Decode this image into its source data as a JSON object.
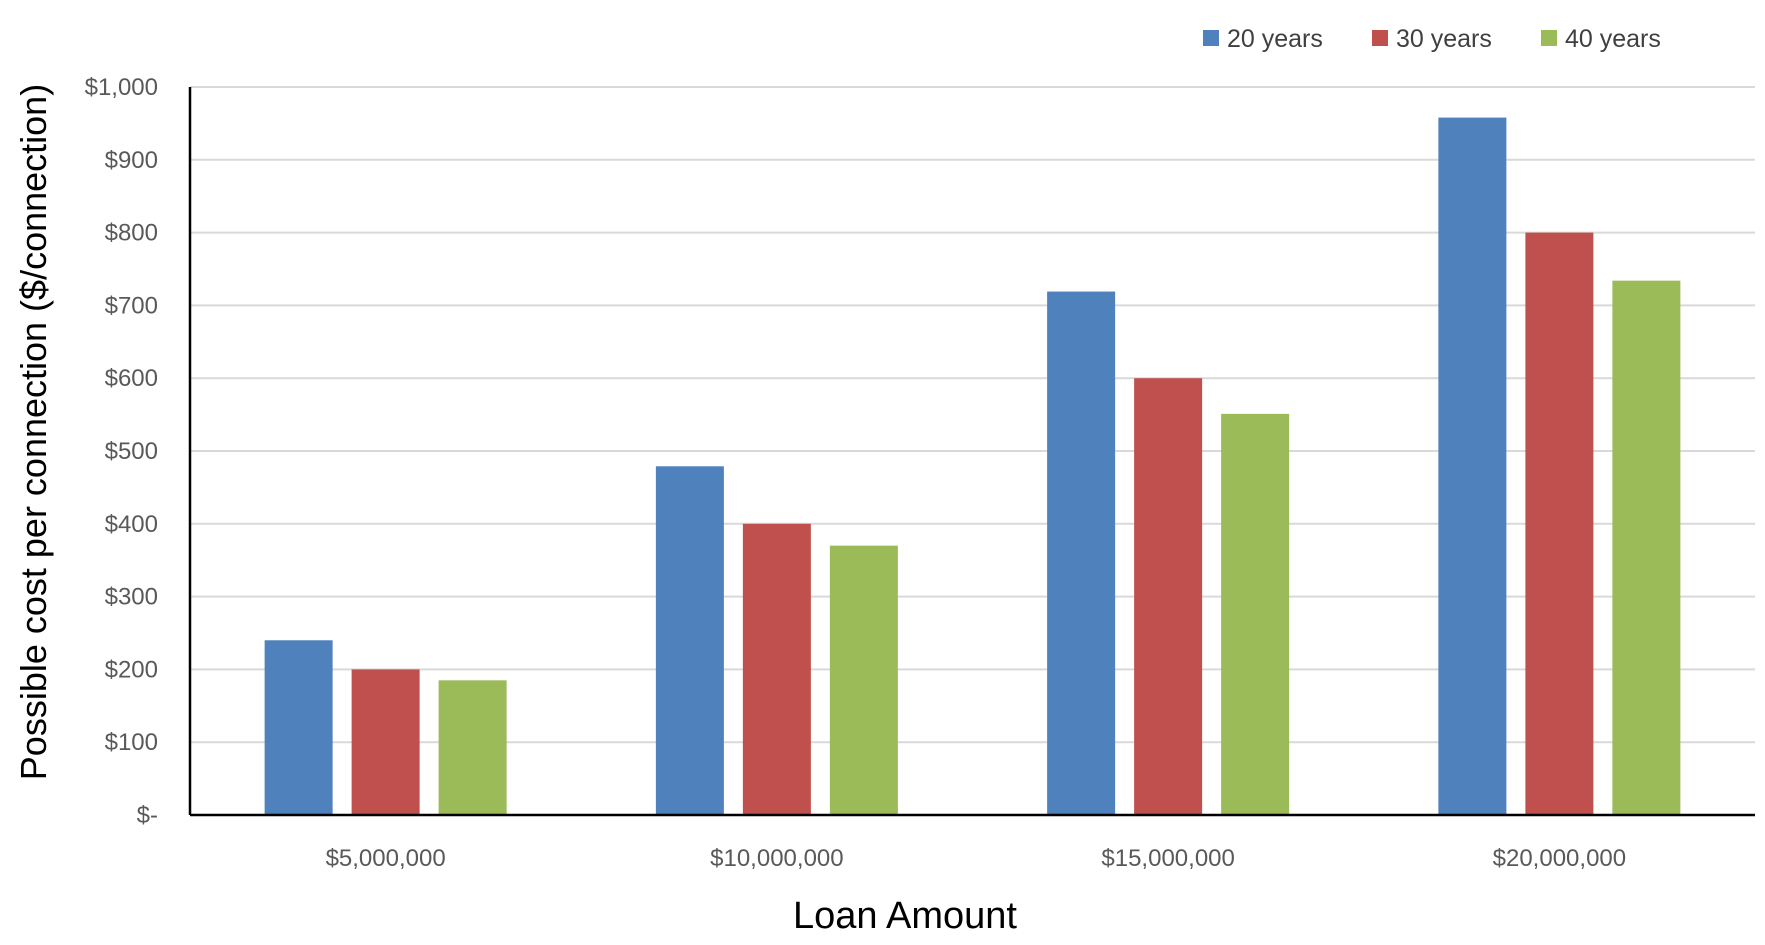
{
  "chart_data": {
    "type": "bar",
    "categories": [
      "$5,000,000",
      "$10,000,000",
      "$15,000,000",
      "$20,000,000"
    ],
    "series": [
      {
        "name": "20 years",
        "color": "#4F81BD",
        "values": [
          240,
          479,
          719,
          958
        ]
      },
      {
        "name": "30 years",
        "color": "#C0504D",
        "values": [
          200,
          400,
          600,
          800
        ]
      },
      {
        "name": "40 years",
        "color": "#9BBB59",
        "values": [
          185,
          370,
          551,
          734
        ]
      }
    ],
    "xlabel": "Loan Amount",
    "ylabel": "Possible cost per connection ($/connection)",
    "ylim": [
      0,
      1000
    ],
    "yticks": [
      0,
      100,
      200,
      300,
      400,
      500,
      600,
      700,
      800,
      900,
      1000
    ],
    "ytick_labels": [
      "$-",
      "$100",
      "$200",
      "$300",
      "$400",
      "$500",
      "$600",
      "$700",
      "$800",
      "$900",
      "$1,000"
    ],
    "grid": true,
    "legend_position": "top-right"
  }
}
